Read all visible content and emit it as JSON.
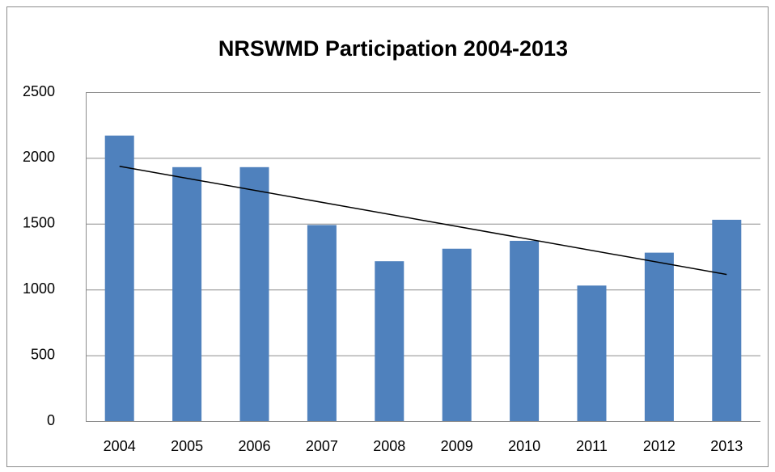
{
  "chart_data": {
    "type": "bar",
    "title": "NRSWMD Participation 2004-2013",
    "categories": [
      "2004",
      "2005",
      "2006",
      "2007",
      "2008",
      "2009",
      "2010",
      "2011",
      "2012",
      "2013"
    ],
    "values": [
      2170,
      1930,
      1930,
      1490,
      1215,
      1310,
      1370,
      1030,
      1280,
      1530
    ],
    "color": "#4f81bd",
    "ylim": [
      0,
      2500
    ],
    "yticks": [
      0,
      500,
      1000,
      1500,
      2000,
      2500
    ],
    "grid": true,
    "trendline": "linear",
    "trendline_color": "#000000"
  }
}
